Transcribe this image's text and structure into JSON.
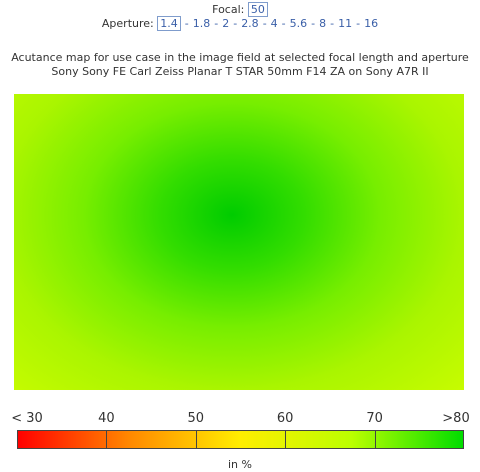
{
  "focal": {
    "label": "Focal:",
    "value": "50"
  },
  "aperture": {
    "label": "Aperture:",
    "separator": "-",
    "options": [
      "1.4",
      "1.8",
      "2",
      "2.8",
      "4",
      "5.6",
      "8",
      "11",
      "16"
    ]
  },
  "title": [
    "Acutance map for use case in the image field at selected focal length and aperture",
    "Sony Sony FE Carl Zeiss Planar T STAR 50mm F14 ZA on Sony A7R II"
  ],
  "legend": {
    "ticks": [
      "< 30",
      "40",
      "50",
      "60",
      "70",
      ">80"
    ],
    "unit": "in %"
  }
}
